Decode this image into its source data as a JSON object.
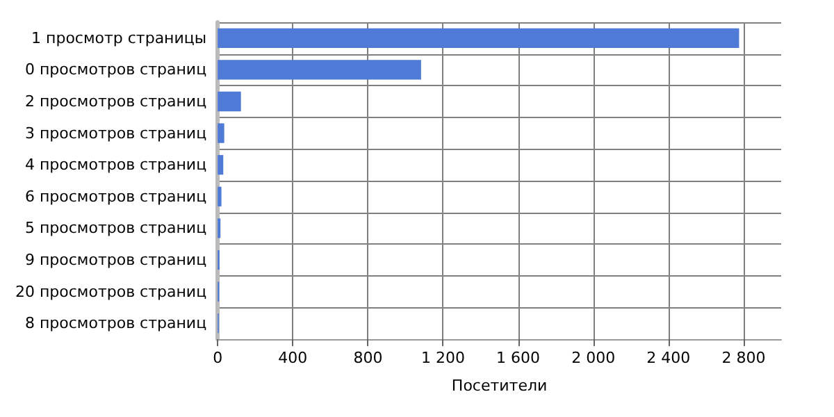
{
  "chart_data": {
    "type": "bar",
    "orientation": "horizontal",
    "xlabel": "Посетители",
    "categories": [
      "1 просмотр страницы",
      "0 просмотров страниц",
      "2 просмотров страниц",
      "3 просмотров страниц",
      "4 просмотров страниц",
      "6 просмотров страниц",
      "5 просмотров страниц",
      "9 просмотров страниц",
      "20 просмотров страниц",
      "8 просмотров страниц"
    ],
    "values": [
      2776,
      1083,
      124,
      35,
      30,
      20,
      15,
      10,
      8,
      6
    ],
    "color": "#4f7ad6",
    "xlim": [
      0,
      3000
    ],
    "xticks": [
      0,
      400,
      800,
      {
        "value": 1200,
        "label": "1 200"
      },
      {
        "value": 1600,
        "label": "1 600"
      },
      {
        "value": 2000,
        "label": "2 000"
      },
      {
        "value": 2400,
        "label": "2 400"
      },
      {
        "value": 2800,
        "label": "2 800"
      }
    ],
    "grid": true
  }
}
